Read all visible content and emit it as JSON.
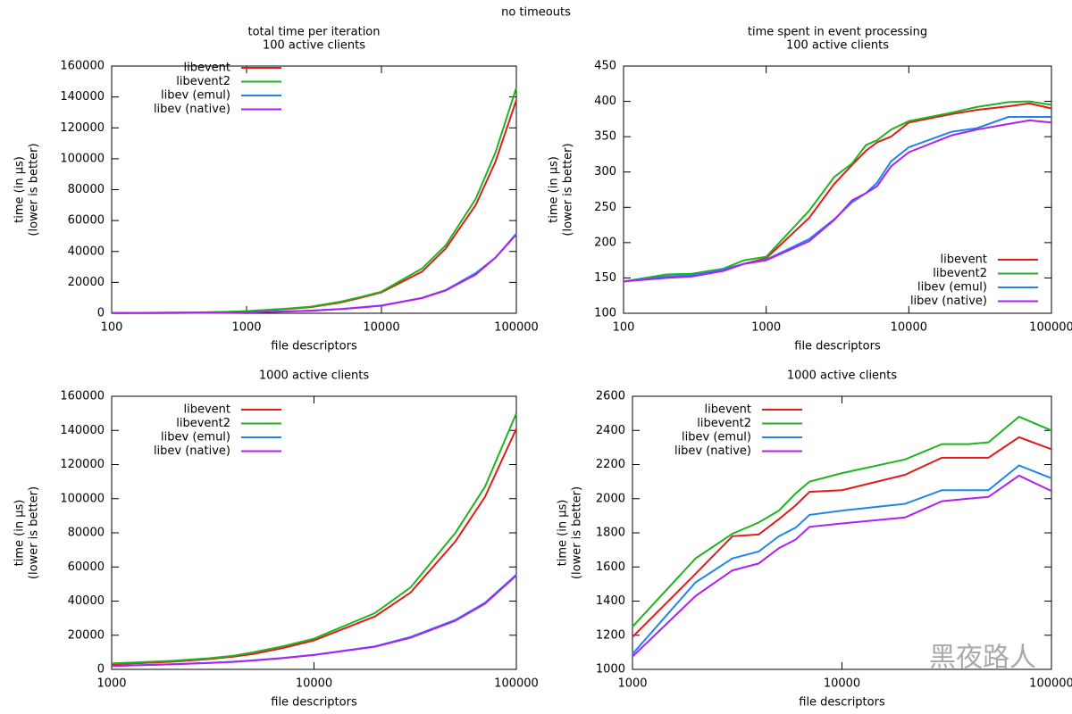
{
  "title": "no timeouts",
  "watermark": "黑夜路人",
  "chart_data": [
    {
      "type": "line",
      "title": "total time per iteration",
      "subtitle": "100 active clients",
      "xlabel": "file descriptors",
      "ylabel": [
        "time (in µs)",
        "(lower is better)"
      ],
      "xscale": "log",
      "xlim": [
        100,
        100000
      ],
      "xticks": [
        100,
        1000,
        10000,
        100000
      ],
      "ylim": [
        0,
        160000
      ],
      "yticks": [
        0,
        20000,
        40000,
        60000,
        80000,
        100000,
        120000,
        140000,
        160000
      ],
      "grid": false,
      "legend": "upper left",
      "x": [
        100,
        200,
        300,
        500,
        700,
        1000,
        2000,
        3000,
        5000,
        7000,
        10000,
        20000,
        30000,
        50000,
        70000,
        100000
      ],
      "series": [
        {
          "name": "libevent",
          "color": "#e01b1b",
          "values": [
            200,
            300,
            400,
            600,
            800,
            1300,
            2800,
            4000,
            7000,
            10000,
            13500,
            27000,
            42000,
            70000,
            98000,
            138000
          ]
        },
        {
          "name": "libevent2",
          "color": "#1fb41f",
          "values": [
            250,
            350,
            450,
            650,
            900,
            1400,
            3000,
            4300,
            7500,
            10500,
            14000,
            29000,
            44000,
            74000,
            104000,
            146000
          ]
        },
        {
          "name": "libev (emul)",
          "color": "#1f86e8",
          "values": [
            100,
            200,
            250,
            350,
            450,
            600,
            1200,
            1700,
            2800,
            3800,
            5000,
            10000,
            15000,
            26000,
            36000,
            51500
          ]
        },
        {
          "name": "libev (native)",
          "color": "#b020f0",
          "values": [
            100,
            180,
            240,
            340,
            440,
            580,
            1150,
            1650,
            2700,
            3700,
            4900,
            9800,
            14800,
            25000,
            36000,
            51000
          ]
        }
      ]
    },
    {
      "type": "line",
      "title": "time spent in event processing",
      "subtitle": "100 active clients",
      "xlabel": "file descriptors",
      "ylabel": [
        "time (in µs)",
        "(lower is better)"
      ],
      "xscale": "log",
      "xlim": [
        100,
        100000
      ],
      "xticks": [
        100,
        1000,
        10000,
        100000
      ],
      "ylim": [
        100,
        450
      ],
      "yticks": [
        100,
        150,
        200,
        250,
        300,
        350,
        400,
        450
      ],
      "grid": false,
      "legend": "lower right",
      "x": [
        100,
        200,
        300,
        500,
        700,
        1000,
        2000,
        3000,
        4000,
        5000,
        6000,
        7500,
        10000,
        20000,
        30000,
        50000,
        70000,
        100000
      ],
      "series": [
        {
          "name": "libevent",
          "color": "#e01b1b",
          "values": [
            145,
            152,
            152,
            160,
            170,
            178,
            235,
            283,
            310,
            330,
            342,
            350,
            370,
            382,
            388,
            393,
            397,
            390
          ]
        },
        {
          "name": "libevent2",
          "color": "#1fb41f",
          "values": [
            145,
            155,
            156,
            163,
            175,
            180,
            245,
            293,
            312,
            338,
            345,
            360,
            372,
            384,
            392,
            399,
            400,
            395
          ]
        },
        {
          "name": "libev (emul)",
          "color": "#1f86e8",
          "values": [
            145,
            152,
            154,
            162,
            170,
            176,
            205,
            233,
            257,
            270,
            285,
            315,
            335,
            357,
            362,
            378,
            378,
            378
          ]
        },
        {
          "name": "libev (native)",
          "color": "#b020f0",
          "values": [
            145,
            150,
            152,
            160,
            170,
            175,
            202,
            232,
            260,
            270,
            280,
            308,
            328,
            352,
            360,
            368,
            373,
            370
          ]
        }
      ]
    },
    {
      "type": "line",
      "title": "1000 active clients",
      "xlabel": "file descriptors",
      "ylabel": [
        "time (in µs)",
        "(lower is better)"
      ],
      "xscale": "log",
      "xlim": [
        1000,
        100000
      ],
      "xticks": [
        1000,
        10000,
        100000
      ],
      "ylim": [
        0,
        160000
      ],
      "yticks": [
        0,
        20000,
        40000,
        60000,
        80000,
        100000,
        120000,
        140000,
        160000
      ],
      "grid": false,
      "legend": "upper left",
      "x": [
        1000,
        2000,
        3000,
        4000,
        5000,
        7000,
        10000,
        20000,
        30000,
        50000,
        70000,
        100000
      ],
      "series": [
        {
          "name": "libevent",
          "color": "#e01b1b",
          "values": [
            3000,
            4500,
            6000,
            7500,
            9000,
            12500,
            17000,
            31000,
            45000,
            75000,
            101000,
            141000
          ]
        },
        {
          "name": "libevent2",
          "color": "#1fb41f",
          "values": [
            3500,
            5000,
            6500,
            8000,
            10000,
            13500,
            18000,
            33000,
            48000,
            80000,
            107000,
            150000
          ]
        },
        {
          "name": "libev (emul)",
          "color": "#1f86e8",
          "values": [
            2000,
            3000,
            3800,
            4500,
            5300,
            6700,
            8500,
            13500,
            19000,
            29000,
            39000,
            55500
          ]
        },
        {
          "name": "libev (native)",
          "color": "#b020f0",
          "values": [
            2000,
            3000,
            3700,
            4400,
            5200,
            6600,
            8400,
            13300,
            18500,
            28500,
            38500,
            55000
          ]
        }
      ]
    },
    {
      "type": "line",
      "title": "1000 active clients",
      "xlabel": "file descriptors",
      "ylabel": [
        "time (in µs)",
        "(lower is better)"
      ],
      "xscale": "log",
      "xlim": [
        1000,
        100000
      ],
      "xticks": [
        1000,
        10000,
        100000
      ],
      "ylim": [
        1000,
        2600
      ],
      "yticks": [
        1000,
        1200,
        1400,
        1600,
        1800,
        2000,
        2200,
        2400,
        2600
      ],
      "grid": false,
      "legend": "upper left",
      "x": [
        1000,
        2000,
        3000,
        4000,
        5000,
        6000,
        7000,
        10000,
        20000,
        30000,
        40000,
        50000,
        70000,
        100000
      ],
      "series": [
        {
          "name": "libevent",
          "color": "#e01b1b",
          "values": [
            1190,
            1560,
            1780,
            1790,
            1880,
            1960,
            2040,
            2050,
            2140,
            2240,
            2240,
            2240,
            2360,
            2290
          ]
        },
        {
          "name": "libevent2",
          "color": "#1fb41f",
          "values": [
            1250,
            1650,
            1795,
            1860,
            1930,
            2030,
            2100,
            2150,
            2230,
            2320,
            2320,
            2330,
            2480,
            2400
          ]
        },
        {
          "name": "libev (emul)",
          "color": "#1f86e8",
          "values": [
            1090,
            1510,
            1650,
            1690,
            1780,
            1830,
            1905,
            1930,
            1970,
            2050,
            2050,
            2050,
            2195,
            2120
          ]
        },
        {
          "name": "libev (native)",
          "color": "#b020f0",
          "values": [
            1075,
            1430,
            1580,
            1620,
            1710,
            1760,
            1835,
            1855,
            1890,
            1985,
            2000,
            2010,
            2135,
            2045
          ]
        }
      ]
    }
  ]
}
